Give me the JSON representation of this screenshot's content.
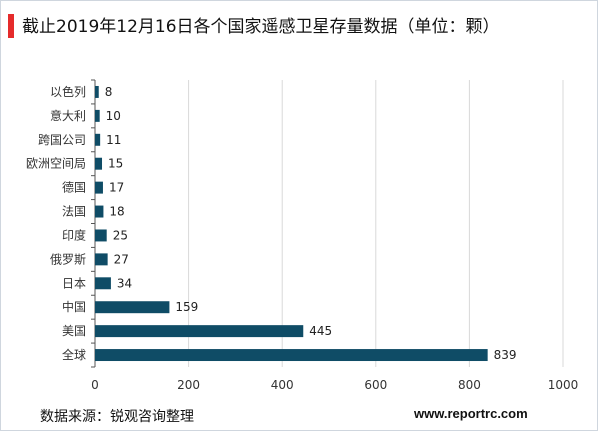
{
  "title": "截止2019年12月16日各个国家遥感卫星存量数据（单位：颗）",
  "source": "数据来源：锐观咨询整理",
  "website": "www.reportrc.com",
  "colors": {
    "bar": "#0f4c66",
    "accent": "#e52b2b",
    "grid": "#d9d9d9"
  },
  "chart_data": {
    "type": "bar",
    "orientation": "horizontal",
    "title": "截止2019年12月16日各个国家遥感卫星存量数据（单位：颗）",
    "categories": [
      "以色列",
      "意大利",
      "跨国公司",
      "欧洲空间局",
      "德国",
      "法国",
      "印度",
      "俄罗斯",
      "日本",
      "中国",
      "美国",
      "全球"
    ],
    "values": [
      8,
      10,
      11,
      15,
      17,
      18,
      25,
      27,
      34,
      159,
      445,
      839
    ],
    "xlim": [
      0,
      1000
    ],
    "xticks": [
      0,
      200,
      400,
      600,
      800,
      1000
    ],
    "grid": true,
    "legend": "none",
    "data_labels": true
  }
}
